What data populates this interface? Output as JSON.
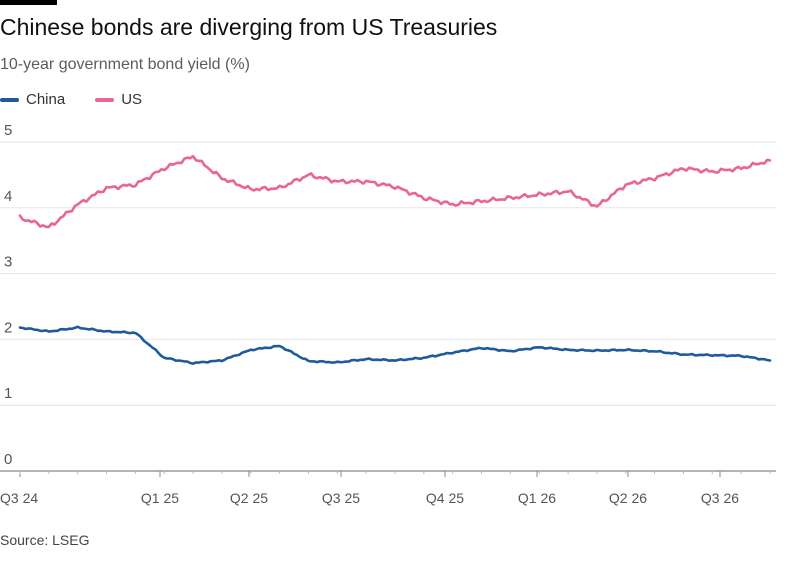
{
  "title": "Chinese bonds are diverging from US Treasuries",
  "subtitle": "10-year government bond yield (%)",
  "source": "Source: LSEG",
  "legend": [
    {
      "name": "China",
      "color": "#1f5a9c"
    },
    {
      "name": "US",
      "color": "#e8668f"
    }
  ],
  "chart_data": {
    "type": "line",
    "title": "Chinese bonds are diverging from US Treasuries",
    "subtitle": "10-year government bond yield (%)",
    "xlabel": "",
    "ylabel": "",
    "ylim": [
      0,
      5
    ],
    "yticks": [
      0,
      1,
      2,
      3,
      4,
      5
    ],
    "xticks": [
      "Q3 24",
      "Q1 25",
      "Q2 25",
      "Q3 25",
      "Q4 25",
      "Q1 26",
      "Q2 26",
      "Q3 26"
    ],
    "xlim": [
      "2024-07",
      "2026-09"
    ],
    "grid": true,
    "legend_position": "top-left",
    "x": [
      "2024-07",
      "2024-08",
      "2024-09",
      "2024-10",
      "2024-11",
      "2024-12",
      "2025-01",
      "2025-02",
      "2025-03",
      "2025-04",
      "2025-05",
      "2025-06",
      "2025-07",
      "2025-08",
      "2025-09",
      "2025-10",
      "2025-11",
      "2025-12",
      "2026-01",
      "2026-02",
      "2026-03",
      "2026-04",
      "2026-05",
      "2026-06",
      "2026-07",
      "2026-08",
      "2026-09"
    ],
    "series": [
      {
        "name": "China",
        "color": "#1f5a9c",
        "values": [
          2.18,
          2.12,
          2.18,
          2.12,
          2.1,
          1.72,
          1.64,
          1.68,
          1.84,
          1.9,
          1.67,
          1.65,
          1.7,
          1.68,
          1.72,
          1.8,
          1.87,
          1.82,
          1.88,
          1.84,
          1.83,
          1.84,
          1.82,
          1.77,
          1.76,
          1.75,
          1.68
        ]
      },
      {
        "name": "US",
        "color": "#e8668f",
        "values": [
          3.85,
          3.7,
          4.05,
          4.3,
          4.35,
          4.6,
          4.78,
          4.45,
          4.28,
          4.3,
          4.5,
          4.4,
          4.4,
          4.32,
          4.15,
          4.05,
          4.1,
          4.15,
          4.2,
          4.25,
          4.02,
          4.35,
          4.45,
          4.6,
          4.55,
          4.6,
          4.72
        ]
      }
    ]
  }
}
